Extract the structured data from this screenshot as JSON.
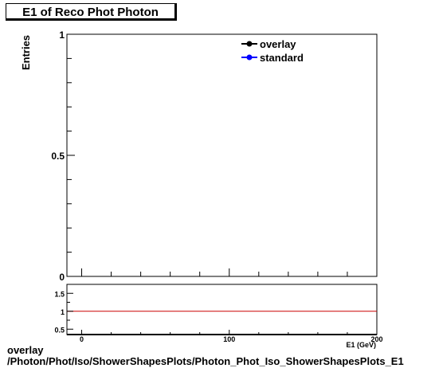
{
  "chart_data": [
    {
      "type": "line",
      "title": "E1 of Reco Phot Photon",
      "ylabel": "Entries",
      "xlabel": "E1 (GeV)",
      "xlim": [
        -10,
        200
      ],
      "ylim": [
        0,
        1
      ],
      "x_ticks": [
        {
          "value": 0,
          "label": "0"
        },
        {
          "value": 100,
          "label": "100"
        },
        {
          "value": 200,
          "label": "200"
        }
      ],
      "y_ticks": [
        {
          "value": 0,
          "label": "0"
        },
        {
          "value": 0.5,
          "label": "0.5"
        },
        {
          "value": 1,
          "label": "1"
        }
      ],
      "legend_position": "top-right",
      "series": [
        {
          "name": "overlay",
          "color": "#000000",
          "values": []
        },
        {
          "name": "standard",
          "color": "#0000ff",
          "values": []
        }
      ]
    },
    {
      "type": "line",
      "title": "",
      "ylim": [
        0.35,
        1.75
      ],
      "y_ticks": [
        {
          "value": 0.5,
          "label": "0.5"
        },
        {
          "value": 1,
          "label": "1"
        },
        {
          "value": 1.5,
          "label": "1.5"
        }
      ],
      "reference_line": {
        "y": 1,
        "color": "#cc0000"
      }
    }
  ],
  "footer": {
    "line1": "overlay",
    "line2": "/Photon/Phot/Iso/ShowerShapesPlots/Photon_Phot_Iso_ShowerShapesPlots_E1"
  }
}
